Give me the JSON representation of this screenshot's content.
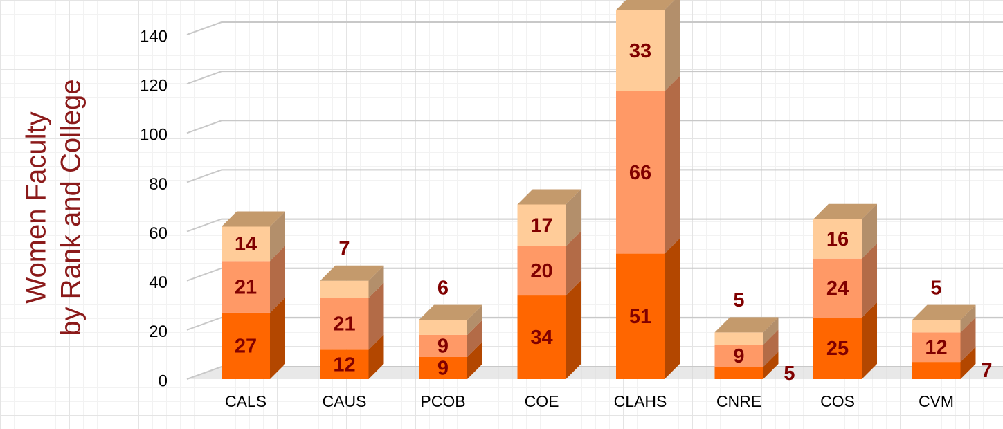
{
  "chart_data": {
    "type": "bar",
    "stacked": true,
    "ylabel": [
      "Women Faculty",
      "by Rank and College"
    ],
    "categories": [
      "CALS",
      "CAUS",
      "PCOB",
      "COE",
      "CLAHS",
      "CNRE",
      "COS",
      "CVM"
    ],
    "series": [
      {
        "color": "#ff6600",
        "values": [
          27,
          12,
          9,
          34,
          51,
          5,
          25,
          7
        ]
      },
      {
        "color": "#ff9966",
        "values": [
          21,
          21,
          9,
          20,
          66,
          9,
          24,
          12
        ]
      },
      {
        "color": "#ffcc99",
        "values": [
          14,
          7,
          6,
          17,
          33,
          5,
          16,
          5
        ]
      }
    ],
    "ylim": [
      0,
      140
    ],
    "yticks": [
      0,
      20,
      40,
      60,
      80,
      100,
      120,
      140
    ],
    "grid": true
  }
}
